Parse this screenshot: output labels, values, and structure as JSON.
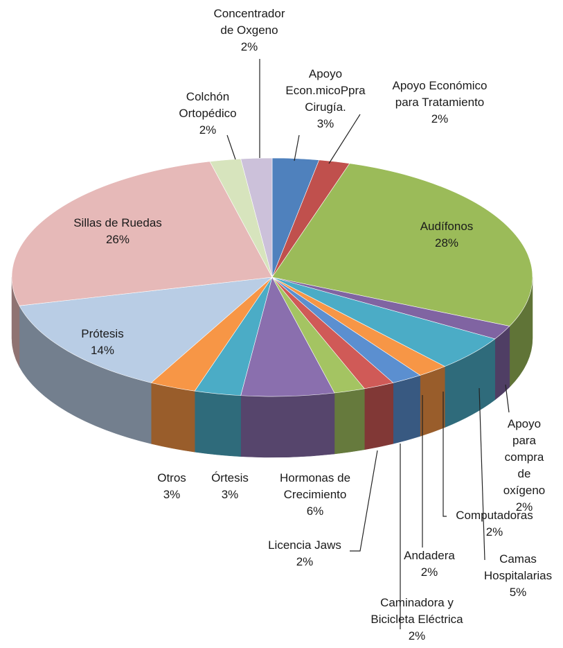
{
  "chart_data": {
    "type": "pie",
    "categories": [
      "Apoyo\nEcon.micoPpra\nCirugía.",
      "Apoyo Económico\npara Tratamiento",
      "Audífonos",
      "Apoyo para\ncompra de\noxígeno",
      "Camas\nHospitalarias",
      "Computadoras",
      "Andadera",
      "Caminadora y\nBicicleta Eléctrica",
      "Licencia Jaws",
      "Hormonas de\nCrecimiento",
      "Órtesis",
      "Otros",
      "Prótesis",
      "Sillas de Ruedas",
      "Colchón\nOrtopédico",
      "Concentrador\nde Oxgeno"
    ],
    "values": [
      3,
      2,
      28,
      2,
      5,
      2,
      2,
      2,
      2,
      6,
      3,
      3,
      14,
      26,
      2,
      2
    ],
    "value_labels": [
      "3%",
      "2%",
      "28%",
      "2%",
      "5%",
      "2%",
      "2%",
      "2%",
      "2%",
      "6%",
      "3%",
      "3%",
      "14%",
      "26%",
      "2%",
      "2%"
    ],
    "colors": [
      "#4f81bd",
      "#c0504d",
      "#9bbb59",
      "#8064a2",
      "#4bacc6",
      "#f79646",
      "#5b8fd0",
      "#d05a57",
      "#a4c462",
      "#8a6fae",
      "#4bacc6",
      "#f79646",
      "#b9cde5",
      "#e6b9b8",
      "#d7e4bd",
      "#ccc1da"
    ]
  }
}
